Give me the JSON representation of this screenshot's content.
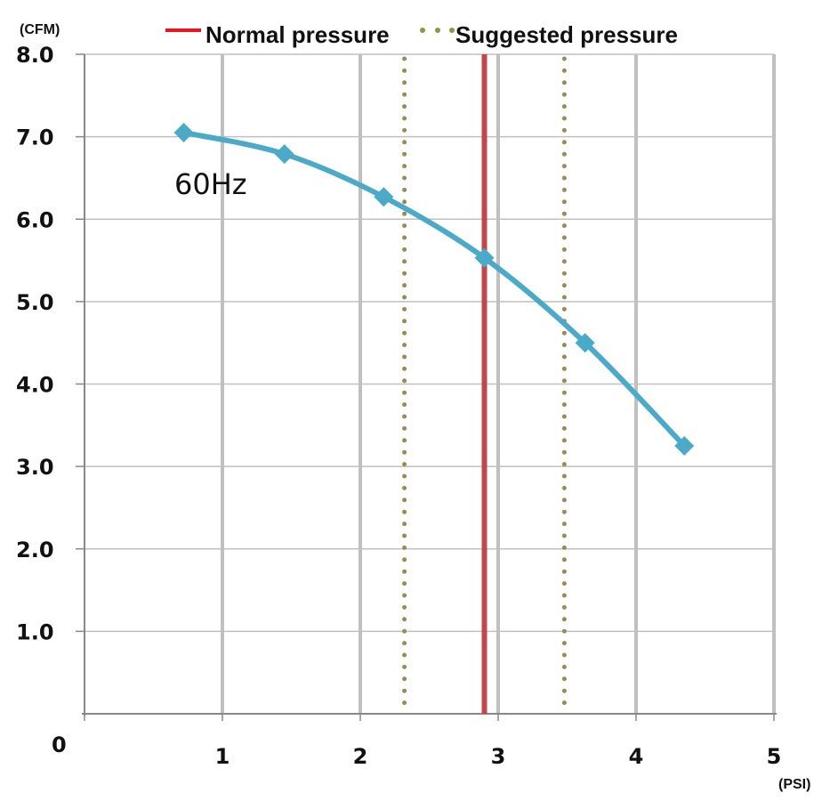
{
  "chart_data": {
    "type": "line",
    "title": "",
    "xlabel": "(PSI)",
    "ylabel": "(CFM)",
    "xlim": [
      0,
      5
    ],
    "ylim": [
      0,
      8
    ],
    "x_ticks": [
      0,
      1,
      2,
      3,
      4,
      5
    ],
    "x_tick_labels": [
      "0",
      "1",
      "2",
      "3",
      "4",
      "5"
    ],
    "y_ticks": [
      1,
      2,
      3,
      4,
      5,
      6,
      7,
      8
    ],
    "y_tick_labels": [
      "1.0",
      "2.0",
      "3.0",
      "4.0",
      "5.0",
      "6.0",
      "7.0",
      "8.0"
    ],
    "grid": true,
    "legend_position": "top",
    "series": [
      {
        "name": "60Hz",
        "color": "#4aaac8",
        "marker": "diamond",
        "smooth": true,
        "x": [
          0.72,
          1.45,
          2.17,
          2.9,
          3.63,
          4.35
        ],
        "y": [
          7.05,
          6.79,
          6.27,
          5.53,
          4.5,
          3.25
        ]
      }
    ],
    "reference_lines": [
      {
        "name": "Normal pressure",
        "style": "solid",
        "color": "#c0474a",
        "legend_color": "#e8141e",
        "x": [
          2.9
        ]
      },
      {
        "name": "Suggested pressure",
        "style": "dotted",
        "color": "#9a8a55",
        "legend_color": "#7aa23a",
        "x": [
          2.32,
          3.48
        ]
      }
    ],
    "legend": [
      {
        "label": "Normal pressure",
        "style": "solid",
        "color": "#e8141e"
      },
      {
        "label": "Suggested pressure",
        "style": "dotted",
        "color": "#7aa23a"
      }
    ],
    "annotations": [
      {
        "text": "60Hz",
        "anchor_x": 0.72,
        "anchor_y": 6.4
      }
    ],
    "colors": {
      "grid": "#c0c0c0",
      "axis": "#888888",
      "text": "#111111"
    }
  }
}
